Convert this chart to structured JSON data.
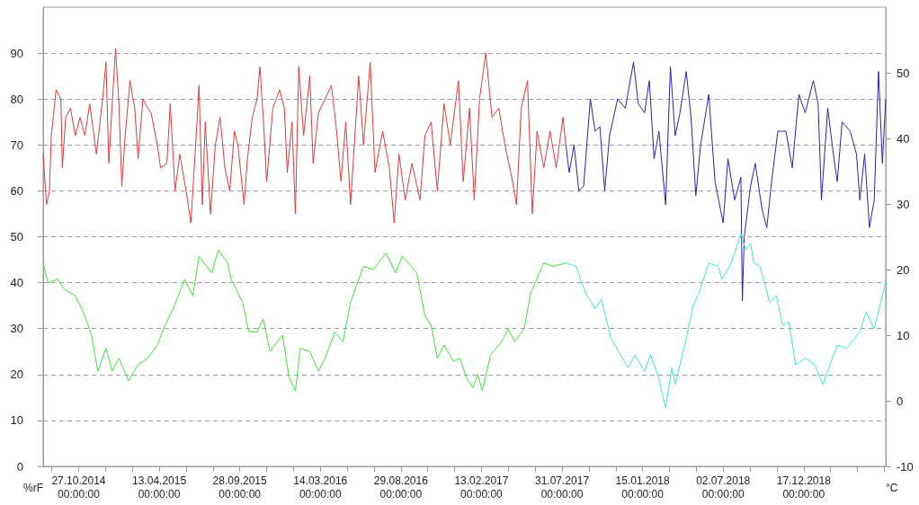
{
  "chart_data": {
    "type": "line",
    "ylabel": "%rF",
    "y2label": "°C",
    "grid": "y",
    "xlim": [
      "2014-08-14",
      "2019-06-06"
    ],
    "xticks": [
      {
        "value": "2014-09-01",
        "label": null
      },
      {
        "value": "2014-10-27",
        "label": "27.10.2014\n00:00:00"
      },
      {
        "value": "2014-12-22",
        "label": null
      },
      {
        "value": "2015-02-16",
        "label": null
      },
      {
        "value": "2015-04-13",
        "label": "13.04.2015\n00:00:00"
      },
      {
        "value": "2015-06-08",
        "label": null
      },
      {
        "value": "2015-08-03",
        "label": null
      },
      {
        "value": "2015-09-28",
        "label": "28.09.2015\n00:00:00"
      },
      {
        "value": "2015-11-23",
        "label": null
      },
      {
        "value": "2016-01-18",
        "label": null
      },
      {
        "value": "2016-03-14",
        "label": "14.03.2016\n00:00:00"
      },
      {
        "value": "2016-05-09",
        "label": null
      },
      {
        "value": "2016-07-04",
        "label": null
      },
      {
        "value": "2016-08-29",
        "label": "29.08.2016\n00:00:00"
      },
      {
        "value": "2016-10-24",
        "label": null
      },
      {
        "value": "2016-12-19",
        "label": null
      },
      {
        "value": "2017-02-13",
        "label": "13.02.2017\n00:00:00"
      },
      {
        "value": "2017-04-10",
        "label": null
      },
      {
        "value": "2017-06-05",
        "label": null
      },
      {
        "value": "2017-07-31",
        "label": "31.07.2017\n00:00:00"
      },
      {
        "value": "2017-09-25",
        "label": null
      },
      {
        "value": "2017-11-20",
        "label": null
      },
      {
        "value": "2018-01-15",
        "label": "15.01.2018\n00:00:00"
      },
      {
        "value": "2018-03-12",
        "label": null
      },
      {
        "value": "2018-05-07",
        "label": null
      },
      {
        "value": "2018-07-02",
        "label": "02.07.2018\n00:00:00"
      },
      {
        "value": "2018-08-27",
        "label": null
      },
      {
        "value": "2018-10-22",
        "label": null
      },
      {
        "value": "2018-12-17",
        "label": "17.12.2018\n00:00:00"
      },
      {
        "value": "2019-02-11",
        "label": null
      },
      {
        "value": "2019-04-08",
        "label": null
      },
      {
        "value": "2019-06-03",
        "label": null
      }
    ],
    "ylim": [
      0,
      100
    ],
    "yticks": [
      0,
      10,
      20,
      30,
      40,
      50,
      60,
      70,
      80,
      90
    ],
    "y2lim": [
      -10,
      60
    ],
    "y2ticks": [
      -10,
      0,
      10,
      20,
      30,
      40,
      50
    ],
    "series": [
      {
        "color": "#e03a3a",
        "x": [
          "2014-08-14",
          "2014-08-21",
          "2014-08-27",
          "2014-08-31",
          "2014-09-10",
          "2014-09-20",
          "2014-09-23",
          "2014-09-30",
          "2014-10-10",
          "2014-10-20",
          "2014-10-30",
          "2014-11-09",
          "2014-11-19",
          "2014-12-03",
          "2014-12-16",
          "2014-12-23",
          "2014-12-29",
          "2015-01-05",
          "2015-01-12",
          "2015-01-19",
          "2015-01-25",
          "2015-02-01",
          "2015-02-11",
          "2015-02-21",
          "2015-02-28",
          "2015-03-10",
          "2015-03-20",
          "2015-03-27",
          "2015-04-09",
          "2015-04-16",
          "2015-04-29",
          "2015-05-06",
          "2015-05-16",
          "2015-05-26",
          "2015-06-08",
          "2015-06-18",
          "2015-06-28",
          "2015-07-05",
          "2015-07-12",
          "2015-07-18",
          "2015-07-29",
          "2015-08-08",
          "2015-08-18",
          "2015-08-28",
          "2015-09-07",
          "2015-09-17",
          "2015-09-24",
          "2015-10-07",
          "2015-10-14",
          "2015-10-24",
          "2015-11-03",
          "2015-11-09",
          "2015-11-16",
          "2015-11-23",
          "2015-12-06",
          "2015-12-20",
          "2015-12-30",
          "2016-01-05",
          "2016-01-15",
          "2016-01-22",
          "2016-01-29",
          "2016-02-08",
          "2016-02-21",
          "2016-02-28",
          "2016-03-10",
          "2016-03-24",
          "2016-04-06",
          "2016-04-16",
          "2016-04-26",
          "2016-05-06",
          "2016-05-16",
          "2016-06-02",
          "2016-06-12",
          "2016-06-26",
          "2016-07-06",
          "2016-07-22",
          "2016-08-05",
          "2016-08-15",
          "2016-08-25",
          "2016-09-07",
          "2016-09-21",
          "2016-10-08",
          "2016-10-18",
          "2016-10-31",
          "2016-11-13",
          "2016-11-27",
          "2016-12-10",
          "2016-12-27",
          "2017-01-06",
          "2017-01-19",
          "2017-01-29",
          "2017-02-09",
          "2017-02-22",
          "2017-03-07",
          "2017-03-21",
          "2017-04-03",
          "2017-04-17",
          "2017-04-27",
          "2017-05-07",
          "2017-05-20",
          "2017-05-30",
          "2017-06-09",
          "2017-06-23",
          "2017-07-06",
          "2017-07-19",
          "2017-08-02",
          "2017-08-08"
        ],
        "values": [
          68,
          57,
          60,
          72,
          82,
          80,
          65,
          76,
          78,
          72,
          76,
          72,
          79,
          68,
          80,
          88,
          66,
          79,
          91,
          79,
          61,
          72,
          84,
          78,
          67,
          80,
          78,
          77,
          70,
          65,
          66,
          79,
          60,
          68,
          60,
          53,
          70,
          83,
          57,
          75,
          55,
          70,
          76,
          65,
          60,
          73,
          70,
          57,
          67,
          76,
          80,
          87,
          76,
          62,
          78,
          82,
          78,
          64,
          75,
          55,
          87,
          72,
          85,
          66,
          77,
          80,
          83,
          74,
          62,
          75,
          57,
          85,
          70,
          88,
          64,
          73,
          65,
          53,
          68,
          58,
          66,
          58,
          72,
          75,
          60,
          79,
          70,
          84,
          62,
          78,
          58,
          80,
          90,
          76,
          78,
          70,
          63,
          57,
          78,
          84,
          55,
          73,
          65,
          73,
          65,
          76,
          70
        ]
      },
      {
        "color": "#2a22b0",
        "x": [
          "2017-08-08",
          "2017-08-15",
          "2017-08-25",
          "2017-09-04",
          "2017-09-14",
          "2017-09-28",
          "2017-10-08",
          "2017-10-18",
          "2017-10-28",
          "2017-11-07",
          "2017-11-24",
          "2017-12-10",
          "2017-12-27",
          "2018-01-06",
          "2018-01-19",
          "2018-01-29",
          "2018-02-08",
          "2018-02-18",
          "2018-03-04",
          "2018-03-14",
          "2018-03-24",
          "2018-04-03",
          "2018-04-16",
          "2018-04-26",
          "2018-05-06",
          "2018-05-16",
          "2018-06-02",
          "2018-06-15",
          "2018-07-02",
          "2018-07-12",
          "2018-07-26",
          "2018-08-08",
          "2018-08-11",
          "2018-08-15",
          "2018-08-28",
          "2018-09-07",
          "2018-09-21",
          "2018-10-01",
          "2018-10-11",
          "2018-10-24",
          "2018-11-10",
          "2018-11-23",
          "2018-12-07",
          "2018-12-20",
          "2019-01-06",
          "2019-01-16",
          "2019-01-23",
          "2019-02-05",
          "2019-02-18",
          "2019-02-25",
          "2019-03-07",
          "2019-03-24",
          "2019-04-06",
          "2019-04-13",
          "2019-04-23",
          "2019-05-03",
          "2019-05-13",
          "2019-05-22",
          "2019-05-30",
          "2019-06-06"
        ],
        "values": [
          70,
          64,
          70,
          60,
          61,
          80,
          73,
          74,
          60,
          72,
          80,
          78,
          88,
          79,
          77,
          84,
          67,
          73,
          57,
          87,
          72,
          77,
          86,
          76,
          59,
          70,
          81,
          62,
          53,
          67,
          58,
          63,
          36,
          50,
          61,
          66,
          56,
          52,
          62,
          73,
          73,
          65,
          81,
          77,
          84,
          79,
          58,
          78,
          67,
          62,
          75,
          73,
          68,
          58,
          68,
          52,
          58,
          86,
          66,
          80
        ]
      },
      {
        "color": "#3ee03a",
        "axis": "y2",
        "x": [
          "2014-08-14",
          "2014-08-24",
          "2014-09-13",
          "2014-09-27",
          "2014-10-20",
          "2014-11-06",
          "2014-11-23",
          "2014-12-06",
          "2014-12-23",
          "2015-01-05",
          "2015-01-19",
          "2015-02-08",
          "2015-02-28",
          "2015-03-20",
          "2015-04-09",
          "2015-04-22",
          "2015-05-12",
          "2015-06-05",
          "2015-06-22",
          "2015-07-05",
          "2015-08-01",
          "2015-08-14",
          "2015-09-03",
          "2015-09-10",
          "2015-10-04",
          "2015-10-17",
          "2015-11-03",
          "2015-11-16",
          "2015-11-30",
          "2015-12-26",
          "2016-01-09",
          "2016-01-22",
          "2016-02-01",
          "2016-02-21",
          "2016-03-10",
          "2016-03-24",
          "2016-04-13",
          "2016-04-30",
          "2016-05-16",
          "2016-06-12",
          "2016-07-02",
          "2016-07-29",
          "2016-08-18",
          "2016-09-01",
          "2016-10-01",
          "2016-10-18",
          "2016-10-31",
          "2016-11-13",
          "2016-11-27",
          "2016-12-17",
          "2016-12-30",
          "2017-01-13",
          "2017-01-26",
          "2017-02-05",
          "2017-02-15",
          "2017-03-04",
          "2017-03-27",
          "2017-04-10",
          "2017-04-23",
          "2017-05-13",
          "2017-05-27",
          "2017-06-23",
          "2017-07-13",
          "2017-08-08"
        ],
        "values": [
          21,
          18,
          18.5,
          17,
          16,
          13.5,
          10,
          4.5,
          8,
          4.5,
          6.5,
          3,
          5.5,
          6.5,
          8.5,
          11,
          14,
          18.5,
          16,
          22,
          19.5,
          23,
          21,
          18.5,
          15,
          10.5,
          10.5,
          12.5,
          7.5,
          10,
          3.5,
          1.5,
          8,
          7.5,
          4.5,
          6.5,
          10.5,
          9,
          15,
          20.5,
          20,
          22.5,
          19.5,
          22,
          19.5,
          13,
          11.5,
          6.5,
          8.5,
          6,
          6.5,
          3.5,
          2,
          4,
          1.5,
          7,
          9,
          11,
          9,
          11,
          16.5,
          21,
          20.5,
          21
        ]
      },
      {
        "color": "#3ee6cc",
        "axis": "y2",
        "x": [
          "2017-08-08",
          "2017-08-29",
          "2017-09-18",
          "2017-10-08",
          "2017-10-21",
          "2017-11-10",
          "2017-11-30",
          "2017-12-16",
          "2017-12-30",
          "2018-01-19",
          "2018-02-01",
          "2018-02-15",
          "2018-03-04",
          "2018-03-17",
          "2018-03-24",
          "2018-04-03",
          "2018-04-16",
          "2018-04-30",
          "2018-05-13",
          "2018-06-02",
          "2018-06-22",
          "2018-06-29",
          "2018-07-19",
          "2018-08-08",
          "2018-08-18",
          "2018-08-28",
          "2018-09-04",
          "2018-09-17",
          "2018-10-07",
          "2018-10-21",
          "2018-11-03",
          "2018-11-16",
          "2018-11-30",
          "2018-12-20",
          "2019-01-09",
          "2019-01-26",
          "2019-02-05",
          "2019-02-25",
          "2019-03-17",
          "2019-04-13",
          "2019-04-26",
          "2019-05-13",
          "2019-05-23",
          "2019-06-06"
        ],
        "values": [
          21,
          20.5,
          16.5,
          14,
          15.5,
          9.5,
          7,
          5,
          7,
          4.5,
          7,
          4,
          -1,
          5,
          2.5,
          5.5,
          9.5,
          14.5,
          16.5,
          21,
          20.5,
          18.5,
          21,
          25.5,
          23,
          24,
          21,
          20.5,
          15,
          16,
          11.5,
          12,
          5.5,
          6.5,
          5.5,
          2.5,
          4.5,
          8.5,
          8,
          10.5,
          13.5,
          11,
          14,
          18
        ]
      }
    ]
  }
}
